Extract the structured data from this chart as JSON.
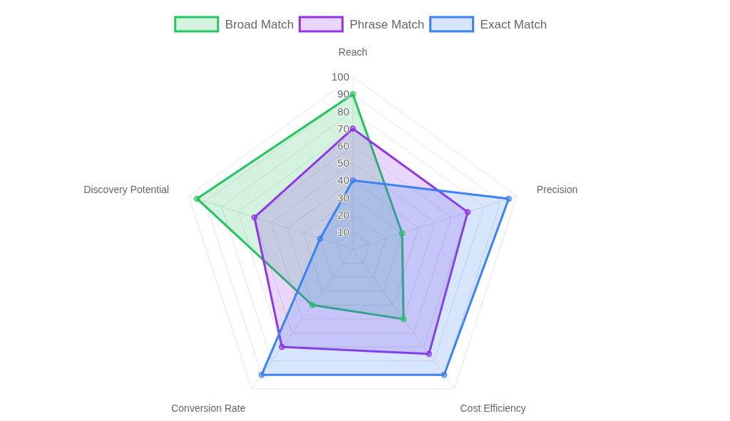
{
  "chart_data": {
    "type": "radar",
    "categories": [
      "Reach",
      "Precision",
      "Cost Efficiency",
      "Conversion Rate",
      "Discovery Potential"
    ],
    "series": [
      {
        "name": "Broad Match",
        "color": "#22c55e",
        "values": [
          90,
          30,
          50,
          40,
          95
        ]
      },
      {
        "name": "Phrase Match",
        "color": "#9333ea",
        "values": [
          70,
          70,
          75,
          70,
          60
        ]
      },
      {
        "name": "Exact Match",
        "color": "#3b82f6",
        "values": [
          40,
          95,
          90,
          90,
          20
        ]
      }
    ],
    "ylim": [
      0,
      100
    ],
    "yticks": [
      10,
      20,
      30,
      40,
      50,
      60,
      70,
      80,
      90,
      100
    ],
    "grid": true,
    "legend": "top",
    "marker": "circle"
  }
}
